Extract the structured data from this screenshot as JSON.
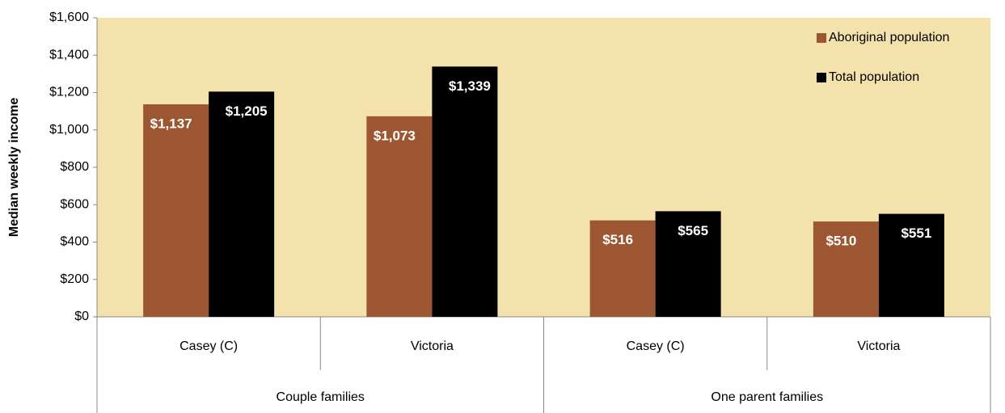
{
  "chart_data": {
    "type": "bar",
    "y_label": "Median weekly income",
    "groups": [
      {
        "name": "Couple families",
        "categories": [
          "Casey (C)",
          "Victoria"
        ]
      },
      {
        "name": "One parent families",
        "categories": [
          "Casey (C)",
          "Victoria"
        ]
      }
    ],
    "series": [
      {
        "name": "Aboriginal population",
        "color": "#9c5632",
        "values": [
          1137,
          1073,
          516,
          510
        ],
        "value_labels": [
          "$1,137",
          "$1,073",
          "$516",
          "$510"
        ]
      },
      {
        "name": "Total population",
        "color": "#000000",
        "values": [
          1205,
          1339,
          565,
          551
        ],
        "value_labels": [
          "$1,205",
          "$1,339",
          "$565",
          "$551"
        ]
      }
    ],
    "ylim": [
      0,
      1600
    ],
    "yticks": [
      {
        "value": 0,
        "label": "$0"
      },
      {
        "value": 200,
        "label": "$200"
      },
      {
        "value": 400,
        "label": "$400"
      },
      {
        "value": 600,
        "label": "$600"
      },
      {
        "value": 800,
        "label": "$800"
      },
      {
        "value": 1000,
        "label": "$1,000"
      },
      {
        "value": 1200,
        "label": "$1,200"
      },
      {
        "value": 1400,
        "label": "$1,400"
      },
      {
        "value": 1600,
        "label": "$1,600"
      }
    ],
    "plot_background": "#f3e2ab",
    "legend": "upper right"
  }
}
